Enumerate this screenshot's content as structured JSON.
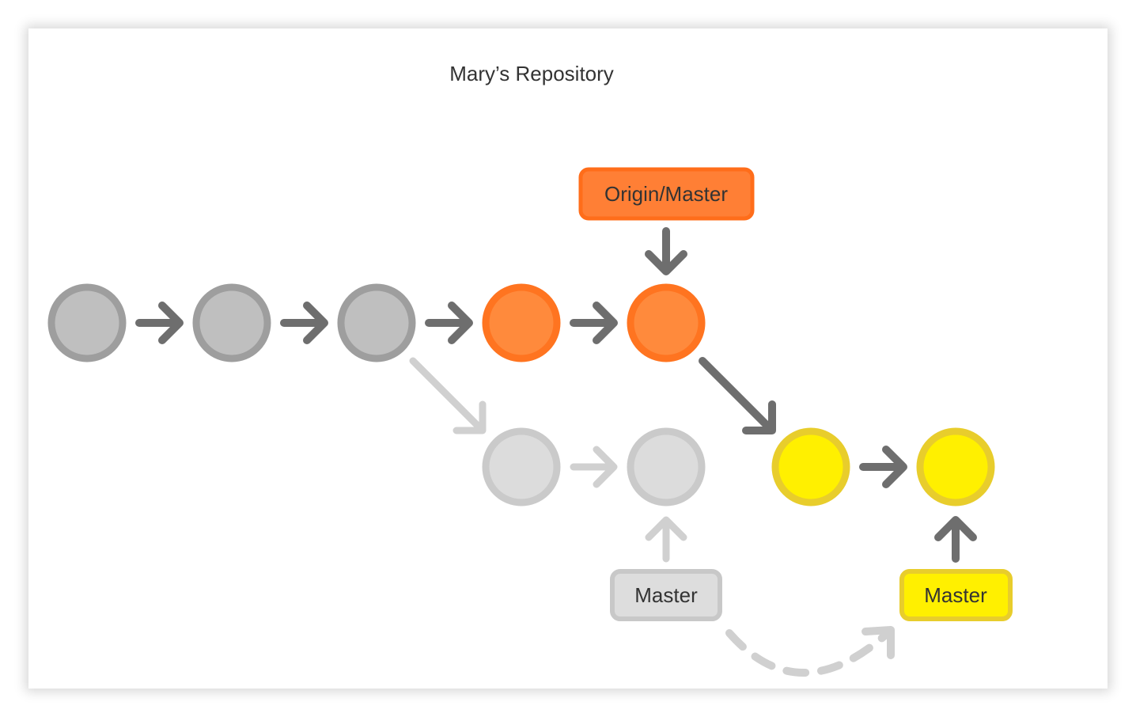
{
  "title": "Mary’s Repository",
  "labels": {
    "origin_master": "Origin/Master",
    "old_master": "Master",
    "new_master": "Master"
  },
  "colors": {
    "gray_fill": "#bfbfbf",
    "gray_stroke": "#999999",
    "light_fill": "#dcdcdc",
    "light_stroke": "#cacaca",
    "orange_fill": "#ff8a3c",
    "orange_stroke": "#ff7420",
    "yellow_fill": "#fff000",
    "yellow_stroke": "#e8cd2c",
    "arrow_dark": "#6e6e6e",
    "arrow_light": "#cccccc",
    "orange_label_fill": "#ff7f35",
    "orange_label_stroke": "#ff6d1a",
    "gray_label_fill": "#dddddd",
    "gray_label_stroke": "#c8c8c8",
    "yellow_label_fill": "#fff000",
    "yellow_label_stroke": "#e8cd2c"
  }
}
